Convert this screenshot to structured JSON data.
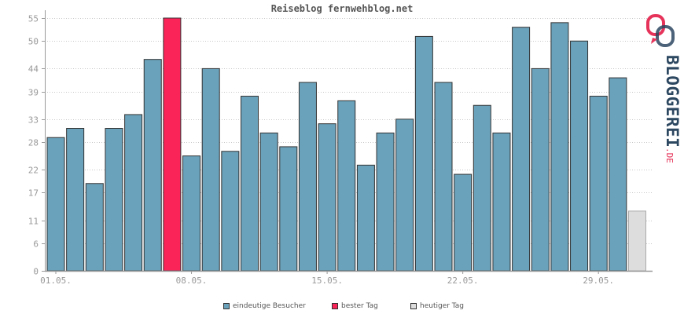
{
  "chart_data": {
    "type": "bar",
    "title": "Reiseblog fernwehblog.net",
    "categories": [
      "01.05.",
      "02.05.",
      "03.05.",
      "04.05.",
      "05.05.",
      "06.05.",
      "07.05.",
      "08.05.",
      "09.05.",
      "10.05.",
      "11.05.",
      "12.05.",
      "13.05.",
      "14.05.",
      "15.05.",
      "16.05.",
      "17.05.",
      "18.05.",
      "19.05.",
      "20.05.",
      "21.05.",
      "22.05.",
      "23.05.",
      "24.05.",
      "25.05.",
      "26.05.",
      "27.05.",
      "28.05.",
      "29.05.",
      "30.05.",
      "31.05."
    ],
    "x_tick_labels": [
      "01.05.",
      "08.05.",
      "15.05.",
      "22.05.",
      "29.05."
    ],
    "x_tick_indices": [
      0,
      7,
      14,
      21,
      28
    ],
    "values": [
      29,
      31,
      19,
      31,
      34,
      46,
      55,
      25,
      44,
      26,
      38,
      30,
      27,
      41,
      32,
      37,
      23,
      30,
      33,
      51,
      41,
      21,
      36,
      30,
      53,
      44,
      54,
      50,
      38,
      42,
      13
    ],
    "bar_roles": [
      "normal",
      "normal",
      "normal",
      "normal",
      "normal",
      "normal",
      "best",
      "normal",
      "normal",
      "normal",
      "normal",
      "normal",
      "normal",
      "normal",
      "normal",
      "normal",
      "normal",
      "normal",
      "normal",
      "normal",
      "normal",
      "normal",
      "normal",
      "normal",
      "normal",
      "normal",
      "normal",
      "normal",
      "normal",
      "normal",
      "today"
    ],
    "y_ticks": [
      0,
      6,
      11,
      17,
      22,
      28,
      33,
      39,
      44,
      50,
      55
    ],
    "ylim": [
      0,
      55
    ],
    "grid": true,
    "legend_position": "bottom",
    "legend": [
      {
        "label": "eindeutige Besucher",
        "color": "#6aa2bb"
      },
      {
        "label": "bester Tag",
        "color": "#fb2459"
      },
      {
        "label": "heutiger Tag",
        "color": "#dddddd"
      }
    ],
    "colors": {
      "normal": "#6aa2bb",
      "best": "#fb2459",
      "today": "#dddddd",
      "axis": "#999999",
      "grid": "#c8c8c8",
      "text": "#999999",
      "outline": "#333333"
    }
  },
  "brand": {
    "text": "BLOGGEREI",
    "suffix": ".DE",
    "icon": "bloggerei-logo-icon",
    "colors": {
      "dark": "#2c4760",
      "accent": "#e6335a"
    }
  }
}
